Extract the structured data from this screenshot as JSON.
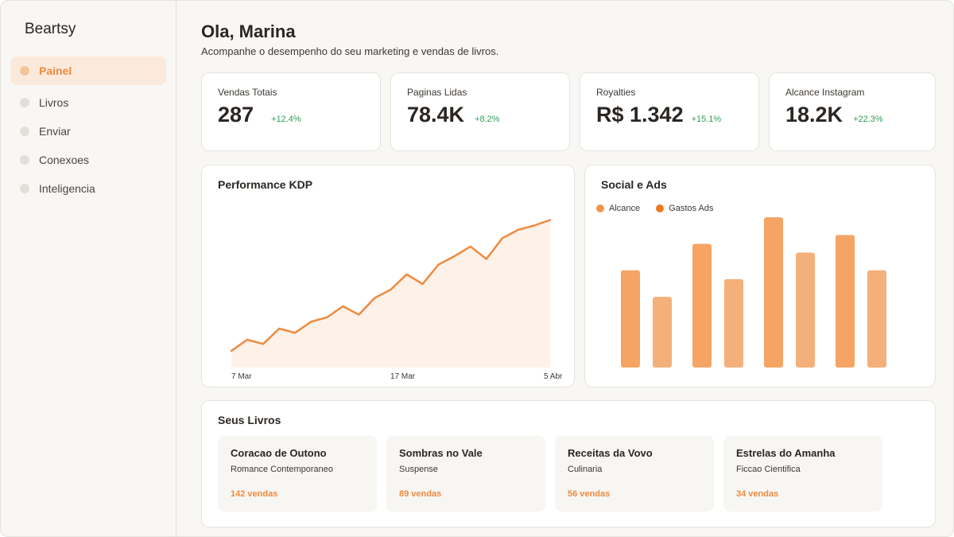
{
  "app": {
    "brand": "Beartsy"
  },
  "sidebar": {
    "items": [
      {
        "label": "Painel",
        "active": true
      },
      {
        "label": "Livros",
        "active": false
      },
      {
        "label": "Enviar",
        "active": false
      },
      {
        "label": "Conexoes",
        "active": false
      },
      {
        "label": "Inteligencia",
        "active": false
      }
    ]
  },
  "header": {
    "greeting": "Ola, Marina",
    "subtitle": "Acompanhe o desempenho do seu marketing e vendas de livros."
  },
  "stats": [
    {
      "label": "Vendas Totais",
      "value": "287",
      "delta": "+12.4%"
    },
    {
      "label": "Paginas Lidas",
      "value": "78.4K",
      "delta": "+8.2%"
    },
    {
      "label": "Royalties",
      "value": "R$ 1.342",
      "delta": "+15.1%"
    },
    {
      "label": "Alcance Instagram",
      "value": "18.2K",
      "delta": "+22.3%"
    }
  ],
  "kdp_panel": {
    "title": "Performance KDP"
  },
  "social_panel": {
    "title": "Social e Ads",
    "legend": [
      {
        "label": "Alcance",
        "color": "#f0964a"
      },
      {
        "label": "Gastos Ads",
        "color": "#ec7a22"
      }
    ]
  },
  "books_panel": {
    "title": "Seus Livros",
    "books": [
      {
        "title": "Coracao de Outono",
        "genre": "Romance Contemporaneo",
        "sales": "142 vendas"
      },
      {
        "title": "Sombras no Vale",
        "genre": "Suspense",
        "sales": "89 vendas"
      },
      {
        "title": "Receitas da Vovo",
        "genre": "Culinaria",
        "sales": "56 vendas"
      },
      {
        "title": "Estrelas do Amanha",
        "genre": "Ficcao Cientifica",
        "sales": "34 vendas"
      }
    ]
  },
  "colors": {
    "accent": "#ee8a3f",
    "positive": "#2f9e55"
  },
  "chart_data": [
    {
      "type": "area",
      "title": "Performance KDP",
      "x_tick_labels": [
        "7 Mar",
        "17 Mar",
        "5 Abr"
      ],
      "x": [
        1,
        2,
        3,
        4,
        5,
        6,
        7,
        8,
        9,
        10,
        11,
        12,
        13,
        14,
        15,
        16,
        17,
        18,
        19,
        20,
        21
      ],
      "values": [
        12,
        20,
        17,
        28,
        25,
        33,
        36,
        44,
        38,
        50,
        56,
        67,
        60,
        74,
        80,
        87,
        78,
        93,
        99,
        102,
        106
      ],
      "ylim": [
        0,
        120
      ],
      "grid": false,
      "color": "#ee8a3f"
    },
    {
      "type": "bar",
      "title": "Social e Ads",
      "categories": [
        "1",
        "2",
        "3",
        "4"
      ],
      "series": [
        {
          "name": "Alcance",
          "values": [
            55,
            70,
            85,
            75
          ],
          "color": "#f6a463"
        },
        {
          "name": "Gastos Ads",
          "values": [
            40,
            50,
            65,
            55
          ],
          "color": "#f4b07a"
        }
      ],
      "ylim": [
        0,
        90
      ],
      "grid": false
    }
  ]
}
